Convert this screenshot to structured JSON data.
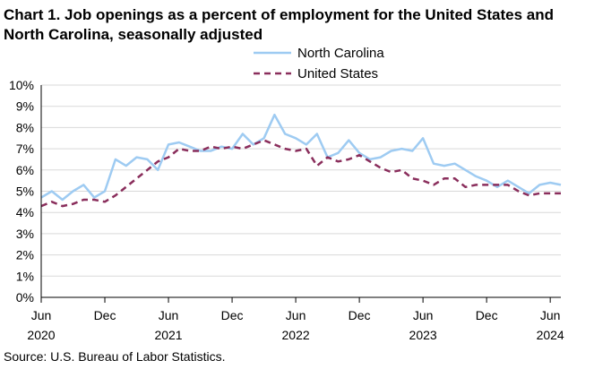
{
  "title": "Chart 1. Job openings as a percent of employment for the United States and North Carolina, seasonally adjusted",
  "source": "Source: U.S. Bureau of Labor Statistics.",
  "colors": {
    "north_carolina": "#9ecbf2",
    "united_states": "#8a2e5c",
    "grid": "#d9d9d9",
    "axis": "#000000"
  },
  "chart_data": {
    "type": "line",
    "x_start": "2020-06",
    "x_tick_labels": [
      {
        "month": "Jun",
        "year": "2020"
      },
      {
        "month": "Dec",
        "year": ""
      },
      {
        "month": "Jun",
        "year": "2021"
      },
      {
        "month": "Dec",
        "year": ""
      },
      {
        "month": "Jun",
        "year": "2022"
      },
      {
        "month": "Dec",
        "year": ""
      },
      {
        "month": "Jun",
        "year": "2023"
      },
      {
        "month": "Dec",
        "year": ""
      },
      {
        "month": "Jun",
        "year": "2024"
      }
    ],
    "y_ticks": [
      "0%",
      "1%",
      "2%",
      "3%",
      "4%",
      "5%",
      "6%",
      "7%",
      "8%",
      "9%",
      "10%"
    ],
    "ylim": [
      0,
      10
    ],
    "grid": true,
    "legend_position": "top-right",
    "series": [
      {
        "name": "North Carolina",
        "values": [
          4.7,
          5.0,
          4.6,
          5.0,
          5.3,
          4.7,
          5.0,
          6.5,
          6.2,
          6.6,
          6.5,
          6.0,
          7.2,
          7.3,
          7.1,
          6.9,
          6.9,
          7.1,
          7.0,
          7.7,
          7.2,
          7.5,
          8.6,
          7.7,
          7.5,
          7.2,
          7.7,
          6.6,
          6.8,
          7.4,
          6.8,
          6.5,
          6.6,
          6.9,
          7.0,
          6.9,
          7.5,
          6.3,
          6.2,
          6.3,
          6.0,
          5.7,
          5.5,
          5.2,
          5.5,
          5.2,
          4.9,
          5.3,
          5.4,
          5.3
        ]
      },
      {
        "name": "United States",
        "values": [
          4.3,
          4.5,
          4.3,
          4.4,
          4.6,
          4.6,
          4.5,
          4.8,
          5.2,
          5.6,
          6.0,
          6.4,
          6.6,
          7.0,
          6.9,
          6.9,
          7.1,
          7.0,
          7.1,
          7.0,
          7.2,
          7.4,
          7.2,
          7.0,
          6.9,
          7.0,
          6.2,
          6.6,
          6.4,
          6.5,
          6.7,
          6.4,
          6.1,
          5.9,
          6.0,
          5.6,
          5.5,
          5.3,
          5.6,
          5.6,
          5.2,
          5.3,
          5.3,
          5.3,
          5.3,
          5.0,
          4.8,
          4.9,
          4.9,
          4.9
        ]
      }
    ]
  }
}
